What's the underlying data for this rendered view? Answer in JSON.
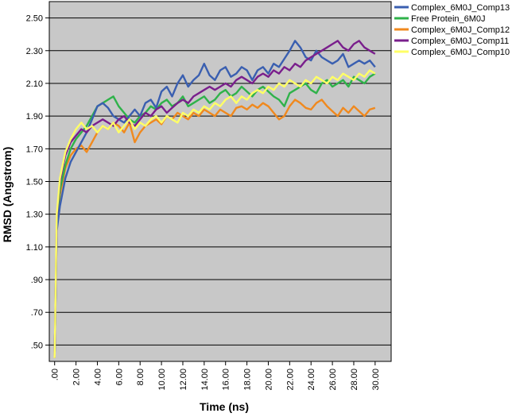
{
  "chart_data": {
    "type": "line",
    "xlabel": "Time (ns)",
    "ylabel": "RMSD (Angstrom)",
    "xlim": [
      -0.5,
      31.5
    ],
    "ylim": [
      0.4,
      2.6
    ],
    "x_ticks": [
      0,
      2,
      4,
      6,
      8,
      10,
      12,
      14,
      16,
      18,
      20,
      22,
      24,
      26,
      28,
      30
    ],
    "x_tick_labels": [
      ".00",
      "2.00",
      "4.00",
      "6.00",
      "8.00",
      "10.00",
      "12.00",
      "14.00",
      "16.00",
      "18.00",
      "20.00",
      "22.00",
      "24.00",
      "26.00",
      "28.00",
      "30.00"
    ],
    "y_ticks": [
      0.5,
      0.7,
      0.9,
      1.1,
      1.3,
      1.5,
      1.7,
      1.9,
      2.1,
      2.3,
      2.5
    ],
    "y_tick_labels": [
      ".50",
      ".70",
      ".90",
      "1.10",
      "1.30",
      "1.50",
      "1.70",
      "1.90",
      "2.10",
      "2.30",
      "2.50"
    ],
    "grid": "horizontal",
    "background": "#c8c8c8",
    "legend_position": "top-right",
    "series": [
      {
        "name": "Complex_6M0J_Comp13",
        "color": "#3a5fb0",
        "x": [
          0,
          0.2,
          0.5,
          1,
          1.5,
          2,
          2.5,
          3,
          3.5,
          4,
          4.5,
          5,
          5.5,
          6,
          6.5,
          7,
          7.5,
          8,
          8.5,
          9,
          9.5,
          10,
          10.5,
          11,
          11.5,
          12,
          12.5,
          13,
          13.5,
          14,
          14.5,
          15,
          15.5,
          16,
          16.5,
          17,
          17.5,
          18,
          18.5,
          19,
          19.5,
          20,
          20.5,
          21,
          21.5,
          22,
          22.5,
          23,
          23.5,
          24,
          24.5,
          25,
          25.5,
          26,
          26.5,
          27,
          27.5,
          28,
          28.5,
          29,
          29.5,
          30
        ],
        "y": [
          0.42,
          1.2,
          1.35,
          1.52,
          1.62,
          1.68,
          1.74,
          1.8,
          1.88,
          1.96,
          1.98,
          1.95,
          1.9,
          1.88,
          1.86,
          1.9,
          1.94,
          1.9,
          1.98,
          2.0,
          1.95,
          2.05,
          2.08,
          2.02,
          2.1,
          2.15,
          2.08,
          2.12,
          2.15,
          2.22,
          2.15,
          2.12,
          2.18,
          2.2,
          2.14,
          2.16,
          2.2,
          2.18,
          2.12,
          2.18,
          2.2,
          2.16,
          2.22,
          2.2,
          2.25,
          2.3,
          2.36,
          2.32,
          2.26,
          2.24,
          2.3,
          2.26,
          2.24,
          2.22,
          2.24,
          2.28,
          2.2,
          2.22,
          2.24,
          2.22,
          2.24,
          2.2
        ]
      },
      {
        "name": "Free Protein_6M0J",
        "color": "#2fb24a",
        "x": [
          0,
          0.2,
          0.5,
          1,
          1.5,
          2,
          2.5,
          3,
          3.5,
          4,
          4.5,
          5,
          5.5,
          6,
          6.5,
          7,
          7.5,
          8,
          8.5,
          9,
          9.5,
          10,
          10.5,
          11,
          11.5,
          12,
          12.5,
          13,
          13.5,
          14,
          14.5,
          15,
          15.5,
          16,
          16.5,
          17,
          17.5,
          18,
          18.5,
          19,
          19.5,
          20,
          20.5,
          21,
          21.5,
          22,
          22.5,
          23,
          23.5,
          24,
          24.5,
          25,
          25.5,
          26,
          26.5,
          27,
          27.5,
          28,
          28.5,
          29,
          29.5,
          30
        ],
        "y": [
          0.42,
          1.25,
          1.45,
          1.6,
          1.7,
          1.76,
          1.8,
          1.84,
          1.9,
          1.96,
          1.98,
          2.0,
          2.02,
          1.96,
          1.92,
          1.88,
          1.86,
          1.9,
          1.92,
          1.96,
          1.94,
          1.98,
          2.0,
          1.96,
          1.98,
          2.02,
          1.96,
          1.98,
          2.0,
          2.02,
          1.98,
          2.0,
          2.04,
          2.06,
          2.02,
          2.04,
          2.08,
          2.05,
          2.02,
          2.06,
          2.08,
          2.05,
          2.02,
          2.0,
          1.96,
          2.04,
          2.06,
          2.08,
          2.1,
          2.06,
          2.04,
          2.1,
          2.12,
          2.08,
          2.1,
          2.12,
          2.08,
          2.14,
          2.12,
          2.1,
          2.14,
          2.16
        ]
      },
      {
        "name": "Complex_6M0J_Comp12",
        "color": "#f0891e",
        "x": [
          0,
          0.2,
          0.5,
          1,
          1.5,
          2,
          2.5,
          3,
          3.5,
          4,
          4.5,
          5,
          5.5,
          6,
          6.5,
          7,
          7.5,
          8,
          8.5,
          9,
          9.5,
          10,
          10.5,
          11,
          11.5,
          12,
          12.5,
          13,
          13.5,
          14,
          14.5,
          15,
          15.5,
          16,
          16.5,
          17,
          17.5,
          18,
          18.5,
          19,
          19.5,
          20,
          20.5,
          21,
          21.5,
          22,
          22.5,
          23,
          23.5,
          24,
          24.5,
          25,
          25.5,
          26,
          26.5,
          27,
          27.5,
          28,
          28.5,
          29,
          29.5,
          30
        ],
        "y": [
          0.42,
          1.22,
          1.42,
          1.58,
          1.66,
          1.7,
          1.72,
          1.68,
          1.74,
          1.8,
          1.84,
          1.82,
          1.86,
          1.84,
          1.8,
          1.86,
          1.74,
          1.8,
          1.84,
          1.86,
          1.88,
          1.85,
          1.9,
          1.88,
          1.92,
          1.9,
          1.88,
          1.92,
          1.9,
          1.94,
          1.92,
          1.9,
          1.94,
          1.92,
          1.9,
          1.95,
          1.96,
          1.94,
          1.97,
          1.95,
          1.98,
          1.96,
          1.92,
          1.88,
          1.9,
          1.96,
          2.0,
          1.98,
          1.95,
          1.94,
          1.98,
          2.0,
          1.96,
          1.93,
          1.9,
          1.95,
          1.92,
          1.96,
          1.93,
          1.9,
          1.94,
          1.95
        ]
      },
      {
        "name": "Complex_6M0J_Comp11",
        "color": "#7a1f8c",
        "x": [
          0,
          0.2,
          0.5,
          1,
          1.5,
          2,
          2.5,
          3,
          3.5,
          4,
          4.5,
          5,
          5.5,
          6,
          6.5,
          7,
          7.5,
          8,
          8.5,
          9,
          9.5,
          10,
          10.5,
          11,
          11.5,
          12,
          12.5,
          13,
          13.5,
          14,
          14.5,
          15,
          15.5,
          16,
          16.5,
          17,
          17.5,
          18,
          18.5,
          19,
          19.5,
          20,
          20.5,
          21,
          21.5,
          22,
          22.5,
          23,
          23.5,
          24,
          24.5,
          25,
          25.5,
          26,
          26.5,
          27,
          27.5,
          28,
          28.5,
          29,
          29.5,
          30
        ],
        "y": [
          0.42,
          1.28,
          1.5,
          1.66,
          1.74,
          1.78,
          1.82,
          1.8,
          1.84,
          1.86,
          1.88,
          1.86,
          1.84,
          1.88,
          1.9,
          1.86,
          1.84,
          1.88,
          1.92,
          1.9,
          1.94,
          1.96,
          1.92,
          1.95,
          1.98,
          2.0,
          1.98,
          2.02,
          2.04,
          2.06,
          2.08,
          2.06,
          2.08,
          2.1,
          2.08,
          2.12,
          2.14,
          2.12,
          2.1,
          2.14,
          2.16,
          2.14,
          2.18,
          2.16,
          2.2,
          2.18,
          2.22,
          2.2,
          2.24,
          2.26,
          2.28,
          2.3,
          2.32,
          2.34,
          2.36,
          2.32,
          2.3,
          2.34,
          2.36,
          2.32,
          2.3,
          2.28
        ]
      },
      {
        "name": "Complex_6M0J_Comp10",
        "color": "#ffff66",
        "x": [
          0,
          0.2,
          0.5,
          1,
          1.5,
          2,
          2.5,
          3,
          3.5,
          4,
          4.5,
          5,
          5.5,
          6,
          6.5,
          7,
          7.5,
          8,
          8.5,
          9,
          9.5,
          10,
          10.5,
          11,
          11.5,
          12,
          12.5,
          13,
          13.5,
          14,
          14.5,
          15,
          15.5,
          16,
          16.5,
          17,
          17.5,
          18,
          18.5,
          19,
          19.5,
          20,
          20.5,
          21,
          21.5,
          22,
          22.5,
          23,
          23.5,
          24,
          24.5,
          25,
          25.5,
          26,
          26.5,
          27,
          27.5,
          28,
          28.5,
          29,
          29.5,
          30
        ],
        "y": [
          0.42,
          1.3,
          1.52,
          1.68,
          1.76,
          1.82,
          1.86,
          1.82,
          1.84,
          1.8,
          1.84,
          1.82,
          1.86,
          1.8,
          1.84,
          1.88,
          1.82,
          1.86,
          1.84,
          1.88,
          1.9,
          1.86,
          1.9,
          1.88,
          1.86,
          1.92,
          1.9,
          1.94,
          1.92,
          1.96,
          1.94,
          1.98,
          1.96,
          2.0,
          2.02,
          1.98,
          2.02,
          2.0,
          2.04,
          2.06,
          2.04,
          2.08,
          2.06,
          2.1,
          2.08,
          2.12,
          2.1,
          2.08,
          2.12,
          2.1,
          2.14,
          2.12,
          2.1,
          2.14,
          2.12,
          2.16,
          2.14,
          2.12,
          2.16,
          2.14,
          2.18,
          2.16
        ]
      }
    ]
  }
}
